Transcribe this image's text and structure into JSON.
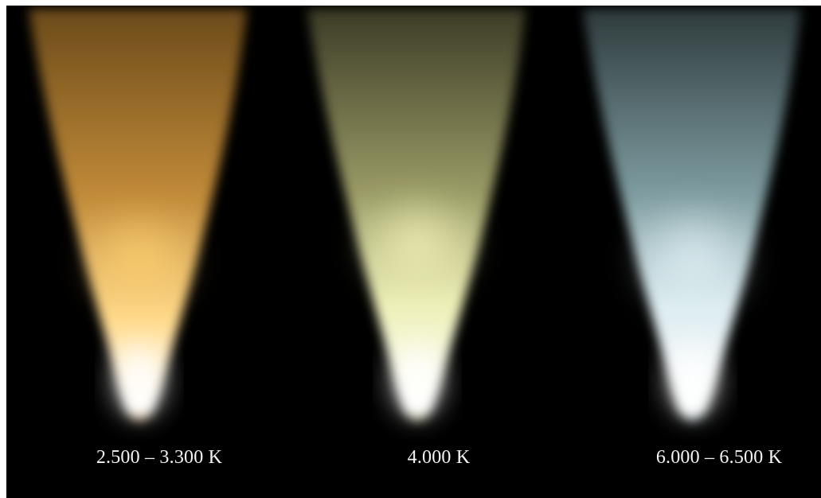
{
  "cones": [
    {
      "label": "2.500 – 3.300 K",
      "colors": {
        "tip": "#ffffff",
        "core": "#ffd98a",
        "mid": "#e0a545",
        "top": "#6b4a1a",
        "edge": "#4a3010"
      }
    },
    {
      "label": "4.000 K",
      "colors": {
        "tip": "#ffffff",
        "core": "#f4f6c4",
        "mid": "#c8c98c",
        "top": "#4c4a30",
        "edge": "#2e2e1a"
      }
    },
    {
      "label": "6.000 – 6.500 K",
      "colors": {
        "tip": "#ffffff",
        "core": "#e6f4f8",
        "mid": "#a9c4c8",
        "top": "#3a4648",
        "edge": "#1e2a2c"
      }
    }
  ]
}
